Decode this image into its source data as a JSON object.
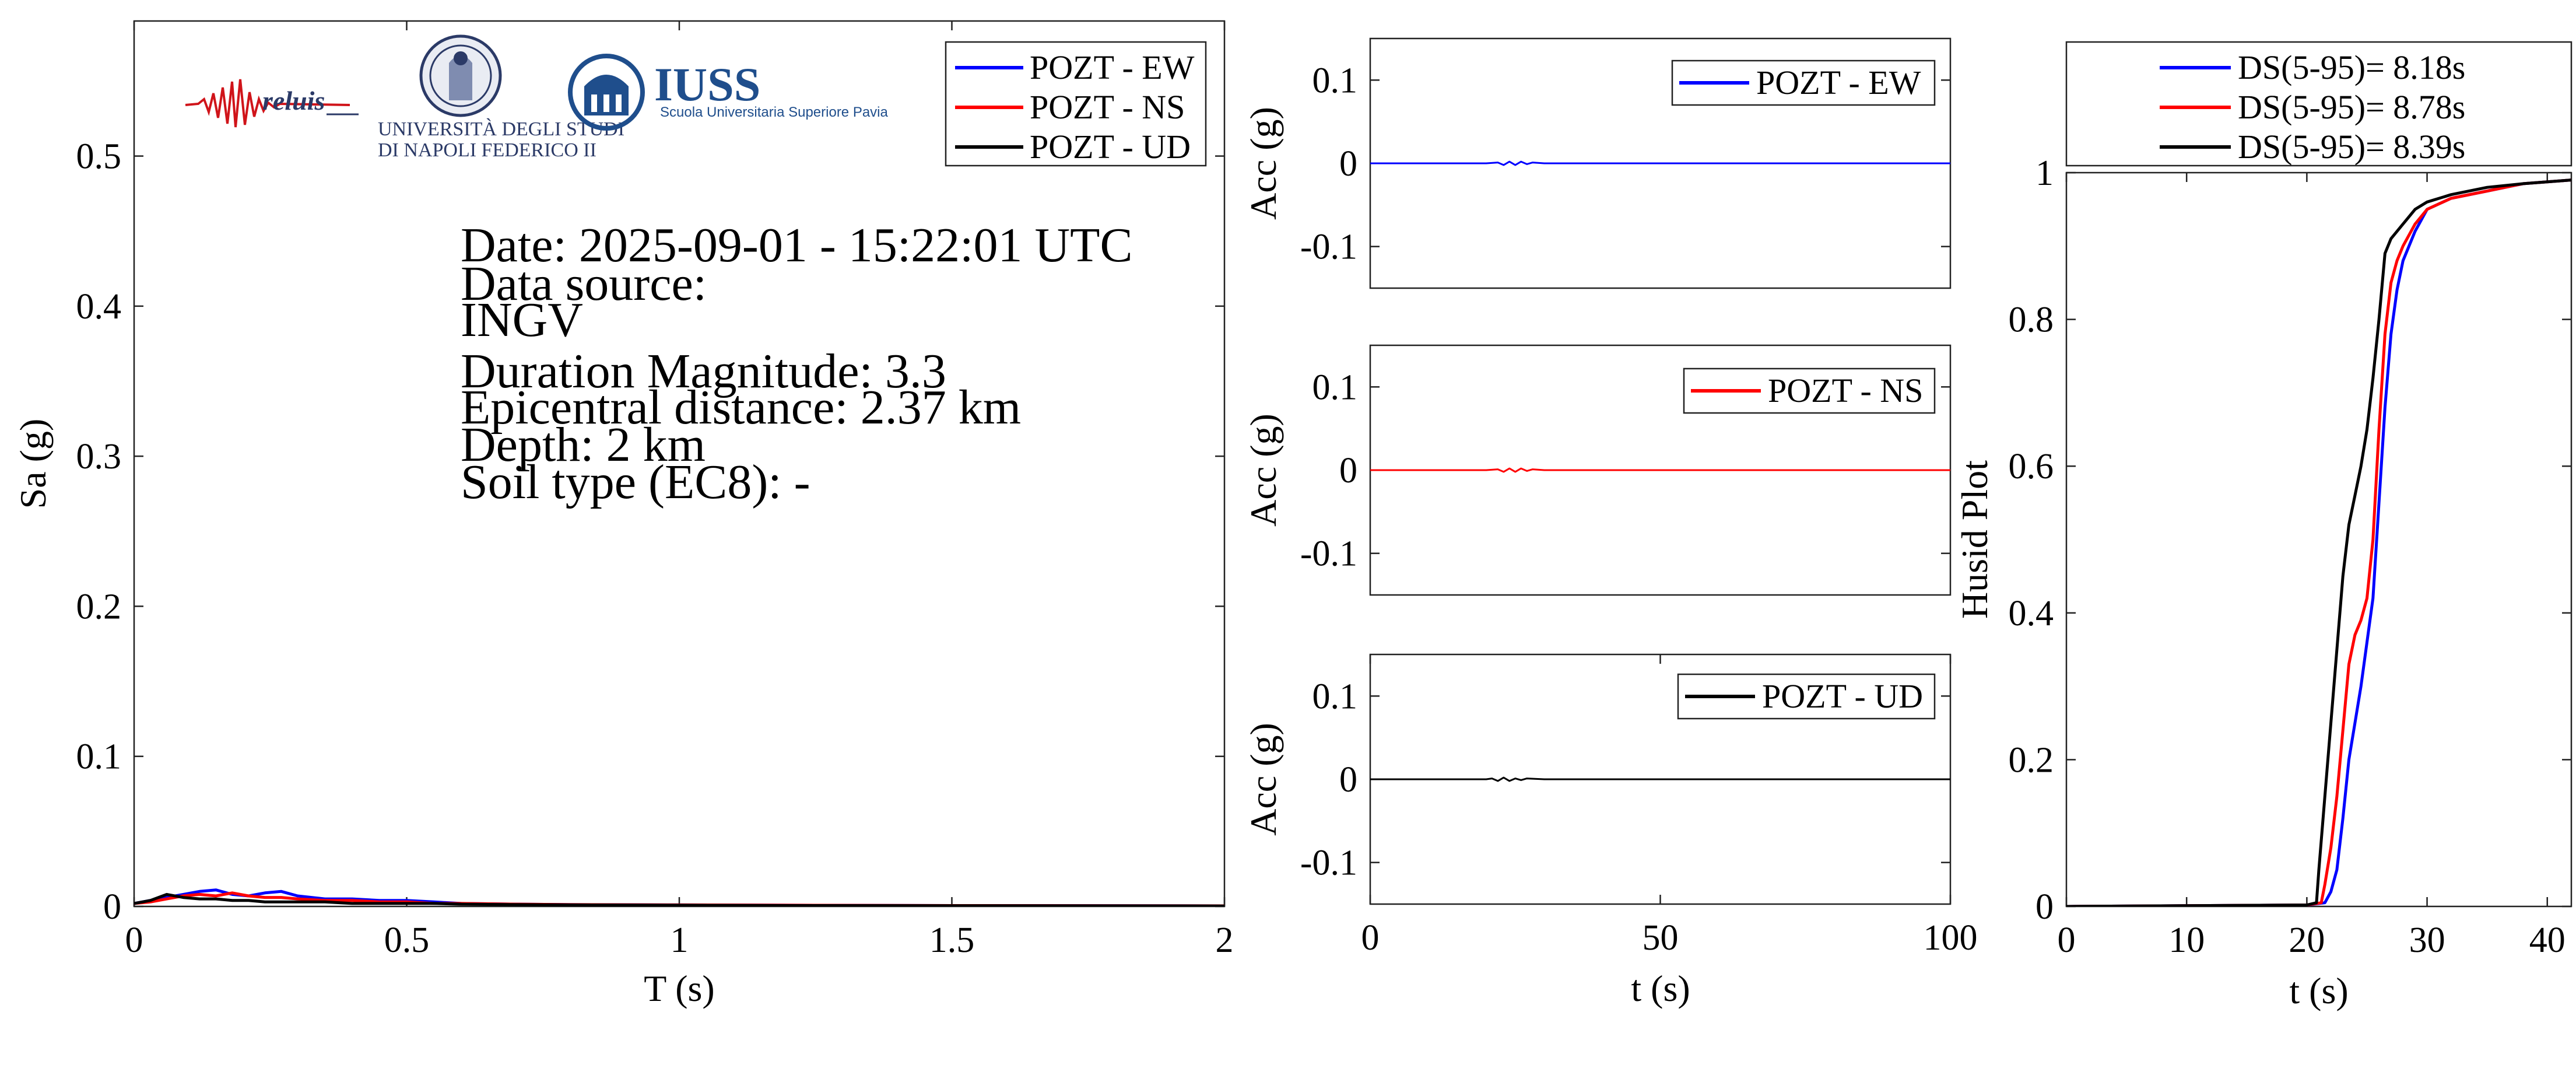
{
  "logos": {
    "reluis": "reluis",
    "unina_line1": "UNIVERSITÀ DEGLI STUDI",
    "unina_line2": "DI NAPOLI FEDERICO II",
    "iuss_title": "IUSS",
    "iuss_subtitle": "Scuola Universitaria Superiore Pavia"
  },
  "info": {
    "date": "Date: 2025-09-01 - 15:22:01 UTC",
    "data_source_label": "Data source:",
    "data_source": "INGV",
    "magnitude": "Duration Magnitude: 3.3",
    "epicentral": "Epicentral distance: 2.37 km",
    "depth": "Depth: 2 km",
    "soil": "Soil type (EC8): -"
  },
  "colors": {
    "ew": "#0000ff",
    "ns": "#ff0000",
    "ud": "#000000"
  },
  "chart_data": [
    {
      "type": "line",
      "xlabel": "T (s)",
      "ylabel": "Sa (g)",
      "xlim": [
        0,
        2
      ],
      "ylim": [
        0,
        0.59
      ],
      "xticks": [
        0,
        0.5,
        1,
        1.5,
        2
      ],
      "xtick_labels": [
        "0",
        "0.5",
        "1",
        "1.5",
        "2"
      ],
      "yticks": [
        0,
        0.1,
        0.2,
        0.3,
        0.4,
        0.5
      ],
      "ytick_labels": [
        "0",
        "0.1",
        "0.2",
        "0.3",
        "0.4",
        "0.5"
      ],
      "legend": "top-right",
      "series": [
        {
          "name": "POZT - EW",
          "color": "#0000ff",
          "x": [
            0,
            0.03,
            0.06,
            0.09,
            0.12,
            0.15,
            0.18,
            0.21,
            0.24,
            0.27,
            0.3,
            0.35,
            0.4,
            0.45,
            0.5,
            0.55,
            0.6,
            0.7,
            0.8,
            1.0,
            1.2,
            1.5,
            2.0
          ],
          "y": [
            0.002,
            0.004,
            0.006,
            0.008,
            0.01,
            0.011,
            0.008,
            0.007,
            0.009,
            0.01,
            0.007,
            0.005,
            0.005,
            0.004,
            0.004,
            0.003,
            0.002,
            0.0015,
            0.0012,
            0.001,
            0.0008,
            0.0006,
            0.0004
          ]
        },
        {
          "name": "POZT - NS",
          "color": "#ff0000",
          "x": [
            0,
            0.03,
            0.06,
            0.09,
            0.12,
            0.15,
            0.18,
            0.21,
            0.24,
            0.27,
            0.3,
            0.35,
            0.4,
            0.45,
            0.5,
            0.55,
            0.6,
            0.7,
            0.8,
            1.0,
            1.2,
            1.5,
            2.0
          ],
          "y": [
            0.002,
            0.003,
            0.005,
            0.007,
            0.008,
            0.007,
            0.009,
            0.007,
            0.006,
            0.006,
            0.005,
            0.004,
            0.004,
            0.003,
            0.003,
            0.002,
            0.002,
            0.0015,
            0.0012,
            0.001,
            0.0008,
            0.0006,
            0.0004
          ]
        },
        {
          "name": "POZT - UD",
          "color": "#000000",
          "x": [
            0,
            0.03,
            0.06,
            0.09,
            0.12,
            0.15,
            0.18,
            0.21,
            0.24,
            0.27,
            0.3,
            0.35,
            0.4,
            0.45,
            0.5,
            0.55,
            0.6,
            0.7,
            0.8,
            1.0,
            1.2,
            1.5,
            2.0
          ],
          "y": [
            0.002,
            0.004,
            0.008,
            0.006,
            0.005,
            0.005,
            0.004,
            0.004,
            0.003,
            0.003,
            0.003,
            0.003,
            0.002,
            0.002,
            0.002,
            0.002,
            0.0015,
            0.0012,
            0.001,
            0.0008,
            0.0006,
            0.0005,
            0.0003
          ]
        }
      ]
    },
    {
      "type": "line",
      "xlabel": "",
      "ylabel": "Acc (g)",
      "xlim": [
        0,
        100
      ],
      "ylim": [
        -0.15,
        0.15
      ],
      "yticks": [
        -0.1,
        0,
        0.1
      ],
      "ytick_labels": [
        "-0.1",
        "0",
        "0.1"
      ],
      "legend": "top-right",
      "series": [
        {
          "name": "POZT - EW",
          "color": "#0000ff",
          "x": [
            0,
            20,
            22,
            23,
            24,
            25,
            26,
            27,
            28,
            30,
            100
          ],
          "y": [
            0,
            0,
            0.001,
            -0.002,
            0.002,
            -0.002,
            0.002,
            -0.001,
            0.001,
            0,
            0
          ]
        }
      ]
    },
    {
      "type": "line",
      "xlabel": "",
      "ylabel": "Acc (g)",
      "xlim": [
        0,
        100
      ],
      "ylim": [
        -0.15,
        0.15
      ],
      "yticks": [
        -0.1,
        0,
        0.1
      ],
      "ytick_labels": [
        "-0.1",
        "0",
        "0.1"
      ],
      "legend": "top-right",
      "series": [
        {
          "name": "POZT - NS",
          "color": "#ff0000",
          "x": [
            0,
            20,
            22,
            23,
            24,
            25,
            26,
            27,
            28,
            30,
            100
          ],
          "y": [
            0,
            0,
            0.001,
            -0.002,
            0.002,
            -0.002,
            0.002,
            -0.001,
            0.001,
            0,
            0
          ]
        }
      ]
    },
    {
      "type": "line",
      "xlabel": "t (s)",
      "ylabel": "Acc (g)",
      "xlim": [
        0,
        100
      ],
      "ylim": [
        -0.15,
        0.15
      ],
      "xticks": [
        0,
        50,
        100
      ],
      "xtick_labels": [
        "0",
        "50",
        "100"
      ],
      "yticks": [
        -0.1,
        0,
        0.1
      ],
      "ytick_labels": [
        "-0.1",
        "0",
        "0.1"
      ],
      "legend": "top-right",
      "series": [
        {
          "name": "POZT - UD",
          "color": "#000000",
          "x": [
            0,
            20,
            21,
            22,
            23,
            24,
            25,
            26,
            27,
            30,
            100
          ],
          "y": [
            0,
            0,
            0.001,
            -0.002,
            0.002,
            -0.002,
            0.001,
            -0.001,
            0.001,
            0,
            0
          ]
        }
      ]
    },
    {
      "type": "line",
      "xlabel": "t (s)",
      "ylabel": "Husid Plot",
      "xlim": [
        0,
        42
      ],
      "ylim": [
        0,
        1
      ],
      "xticks": [
        0,
        10,
        20,
        30,
        40
      ],
      "xtick_labels": [
        "0",
        "10",
        "20",
        "30",
        "40"
      ],
      "yticks": [
        0,
        0.2,
        0.4,
        0.6,
        0.8,
        1
      ],
      "ytick_labels": [
        "0",
        "0.2",
        "0.4",
        "0.6",
        "0.8",
        "1"
      ],
      "legend": "top",
      "series": [
        {
          "name": "DS(5-95)= 8.18s",
          "color": "#0000ff",
          "x": [
            0,
            20,
            21.5,
            22,
            22.5,
            23,
            23.5,
            24,
            24.5,
            25,
            25.5,
            26,
            26.5,
            27,
            27.5,
            28,
            29,
            30,
            32,
            35,
            38,
            42
          ],
          "y": [
            0,
            0.002,
            0.005,
            0.02,
            0.05,
            0.12,
            0.2,
            0.25,
            0.3,
            0.36,
            0.42,
            0.55,
            0.68,
            0.78,
            0.84,
            0.88,
            0.92,
            0.95,
            0.965,
            0.975,
            0.985,
            0.99
          ]
        },
        {
          "name": "DS(5-95)= 8.78s",
          "color": "#ff0000",
          "x": [
            0,
            20,
            21.2,
            21.5,
            22,
            22.5,
            23,
            23.5,
            24,
            24.5,
            25,
            25.5,
            26,
            26.5,
            27,
            27.5,
            28,
            29,
            30,
            32,
            35,
            38,
            42
          ],
          "y": [
            0,
            0.002,
            0.005,
            0.03,
            0.08,
            0.15,
            0.24,
            0.33,
            0.37,
            0.39,
            0.42,
            0.5,
            0.65,
            0.78,
            0.85,
            0.88,
            0.9,
            0.93,
            0.95,
            0.965,
            0.975,
            0.985,
            0.99
          ]
        },
        {
          "name": "DS(5-95)= 8.39s",
          "color": "#000000",
          "x": [
            0,
            20,
            20.8,
            21,
            21.5,
            22,
            22.5,
            23,
            23.5,
            24,
            24.5,
            25,
            25.5,
            26,
            26.5,
            27,
            28,
            29,
            30,
            32,
            35,
            38,
            42
          ],
          "y": [
            0,
            0.002,
            0.005,
            0.05,
            0.15,
            0.25,
            0.35,
            0.45,
            0.52,
            0.56,
            0.6,
            0.65,
            0.72,
            0.8,
            0.89,
            0.91,
            0.93,
            0.95,
            0.96,
            0.97,
            0.98,
            0.985,
            0.99
          ]
        }
      ]
    }
  ]
}
